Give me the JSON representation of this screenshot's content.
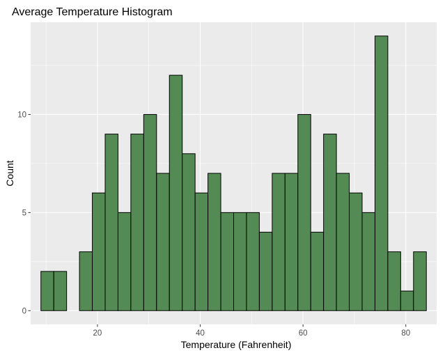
{
  "chart_data": {
    "type": "bar",
    "title": "Average Temperature Histogram",
    "xlabel": "Temperature (Fahrenheit)",
    "ylabel": "Count",
    "xlim": [
      7.0,
      86.0
    ],
    "ylim": [
      -0.7,
      14.7
    ],
    "bin_width": 2.5,
    "first_bin_start": 9.0,
    "counts": [
      2,
      2,
      0,
      3,
      6,
      9,
      5,
      9,
      10,
      7,
      12,
      8,
      6,
      7,
      5,
      5,
      5,
      4,
      7,
      7,
      10,
      4,
      9,
      7,
      6,
      5,
      14,
      3,
      1,
      3
    ],
    "x_ticks": [
      20,
      40,
      60,
      80
    ],
    "x_tick_labels": [
      "20",
      "40",
      "60",
      "80"
    ],
    "x_minor_ticks": [
      10,
      30,
      50,
      70
    ],
    "y_ticks": [
      0,
      5,
      10
    ],
    "y_tick_labels": [
      "0",
      "5",
      "10"
    ],
    "y_minor_ticks": [
      2.5,
      7.5,
      12.5
    ],
    "grid": true,
    "colors": {
      "fill": "#548B54",
      "outline": "#000000",
      "panel": "#EBEBEB",
      "grid": "#FFFFFF",
      "tick": "#333333"
    }
  }
}
